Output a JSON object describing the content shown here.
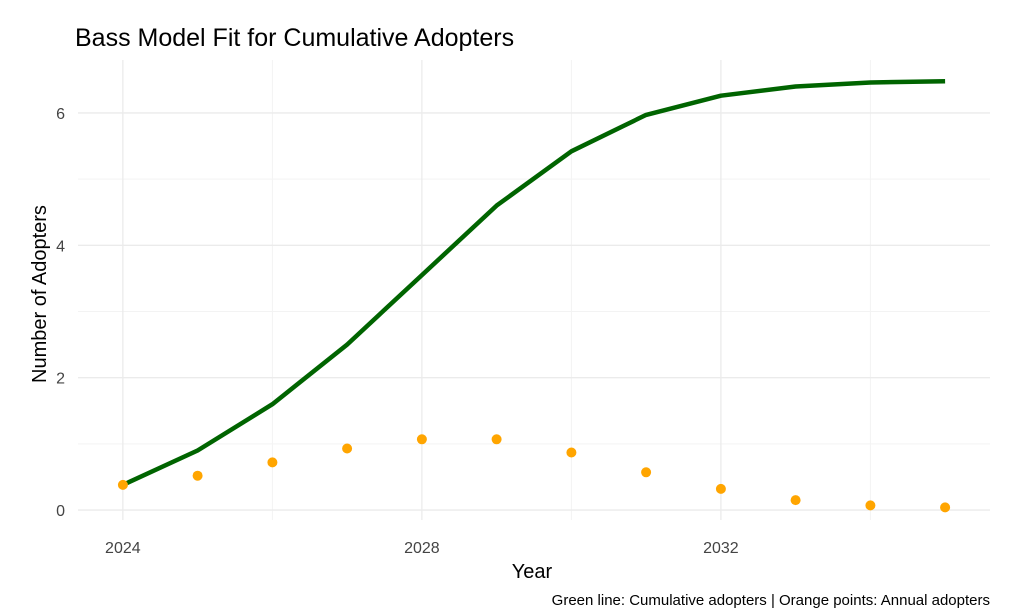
{
  "chart_data": {
    "type": "line",
    "title": "Bass Model Fit for Cumulative Adopters",
    "xlabel": "Year",
    "ylabel": "Number of Adopters",
    "caption": "Green line: Cumulative adopters | Orange points: Annual adopters",
    "xlim": [
      2023.4,
      2035.6
    ],
    "ylim": [
      -0.15,
      6.8
    ],
    "x_ticks": [
      2024,
      2028,
      2032
    ],
    "y_ticks": [
      0,
      2,
      4,
      6
    ],
    "grid": true,
    "legend": "none",
    "x": [
      2024,
      2025,
      2026,
      2027,
      2028,
      2029,
      2030,
      2031,
      2032,
      2033,
      2034,
      2035
    ],
    "series": [
      {
        "kind": "line",
        "color": "#006400",
        "values": [
          0.38,
          0.9,
          1.6,
          2.5,
          3.55,
          4.6,
          5.42,
          5.97,
          6.26,
          6.4,
          6.46,
          6.48
        ]
      },
      {
        "kind": "points",
        "color": "#FFA500",
        "values": [
          0.38,
          0.52,
          0.72,
          0.93,
          1.07,
          1.07,
          0.87,
          0.57,
          0.32,
          0.15,
          0.07,
          0.04
        ]
      }
    ]
  }
}
